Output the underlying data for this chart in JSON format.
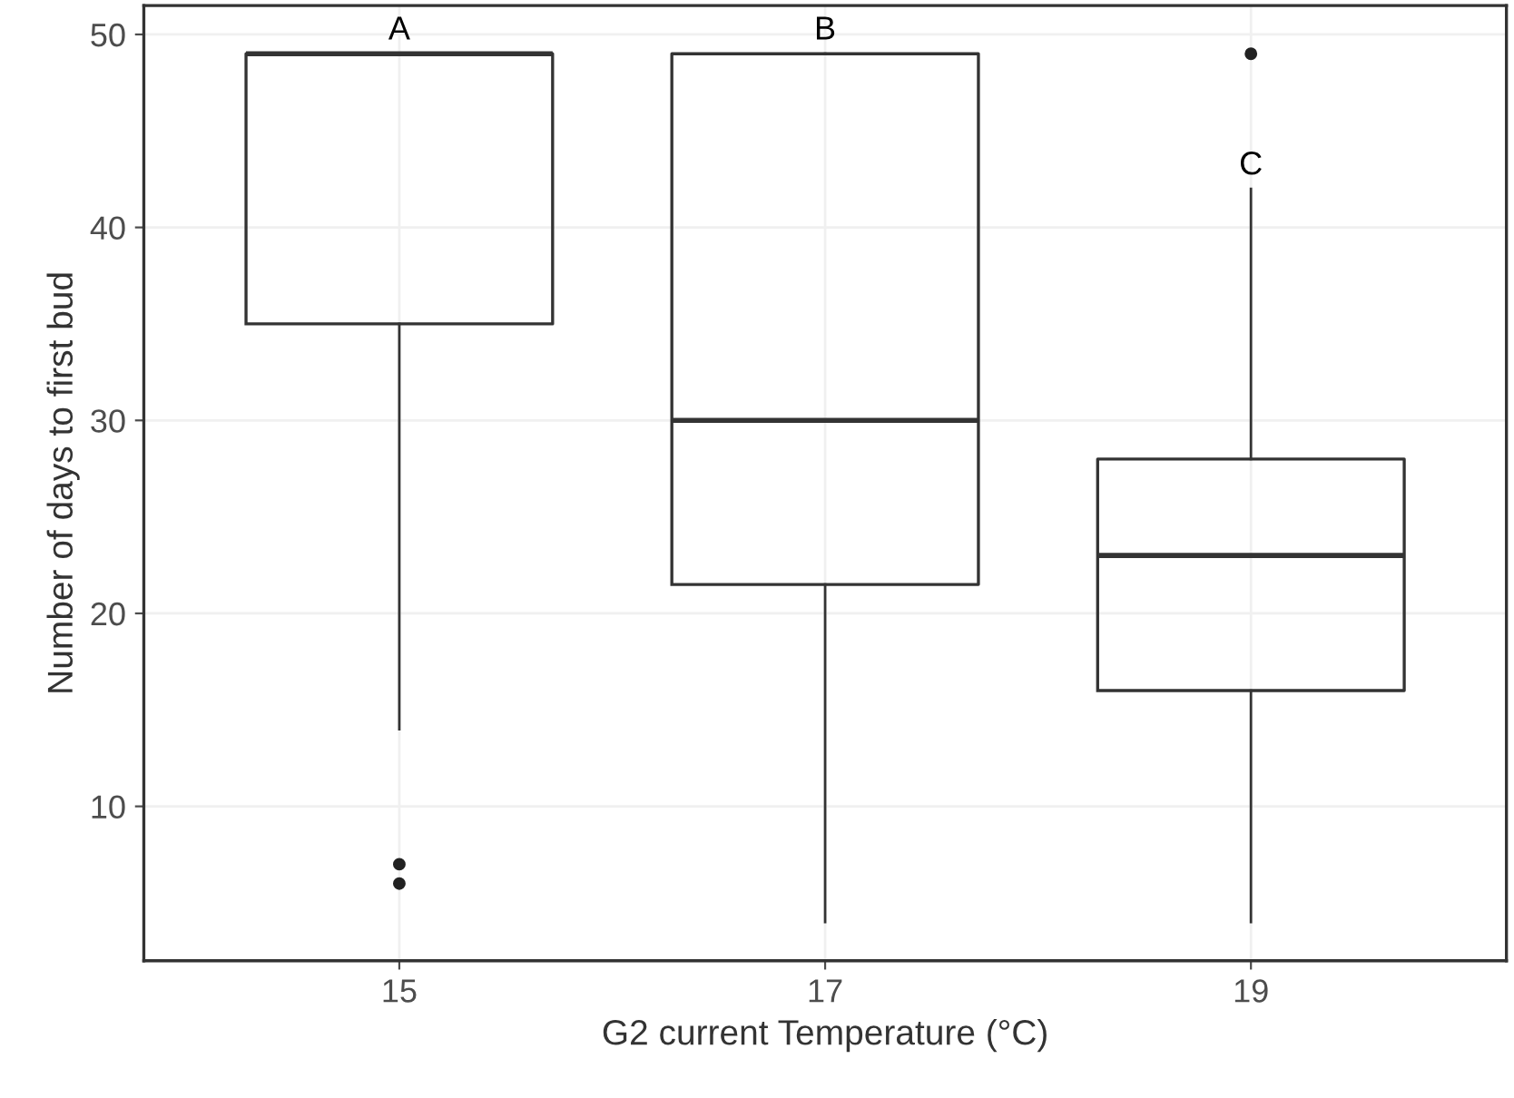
{
  "chart_data": {
    "type": "box",
    "xlabel": "G2 current Temperature (°C)",
    "ylabel": "Number of days to first bud",
    "categories": [
      "15",
      "17",
      "19"
    ],
    "boxes": [
      {
        "low": 14,
        "q1": 35,
        "median": 49,
        "q3": 49,
        "high": 49,
        "outliers": [
          7,
          6
        ]
      },
      {
        "low": 4,
        "q1": 21.5,
        "median": 30,
        "q3": 49,
        "high": 49
      },
      {
        "low": 4,
        "q1": 16,
        "median": 23,
        "q3": 28,
        "high": 42,
        "outliers": [
          49
        ]
      }
    ],
    "ylim": [
      2,
      51.5
    ],
    "yticks": [
      10,
      20,
      30,
      40,
      50
    ],
    "grid": true,
    "annotations": [
      "A",
      "B",
      "C"
    ]
  }
}
